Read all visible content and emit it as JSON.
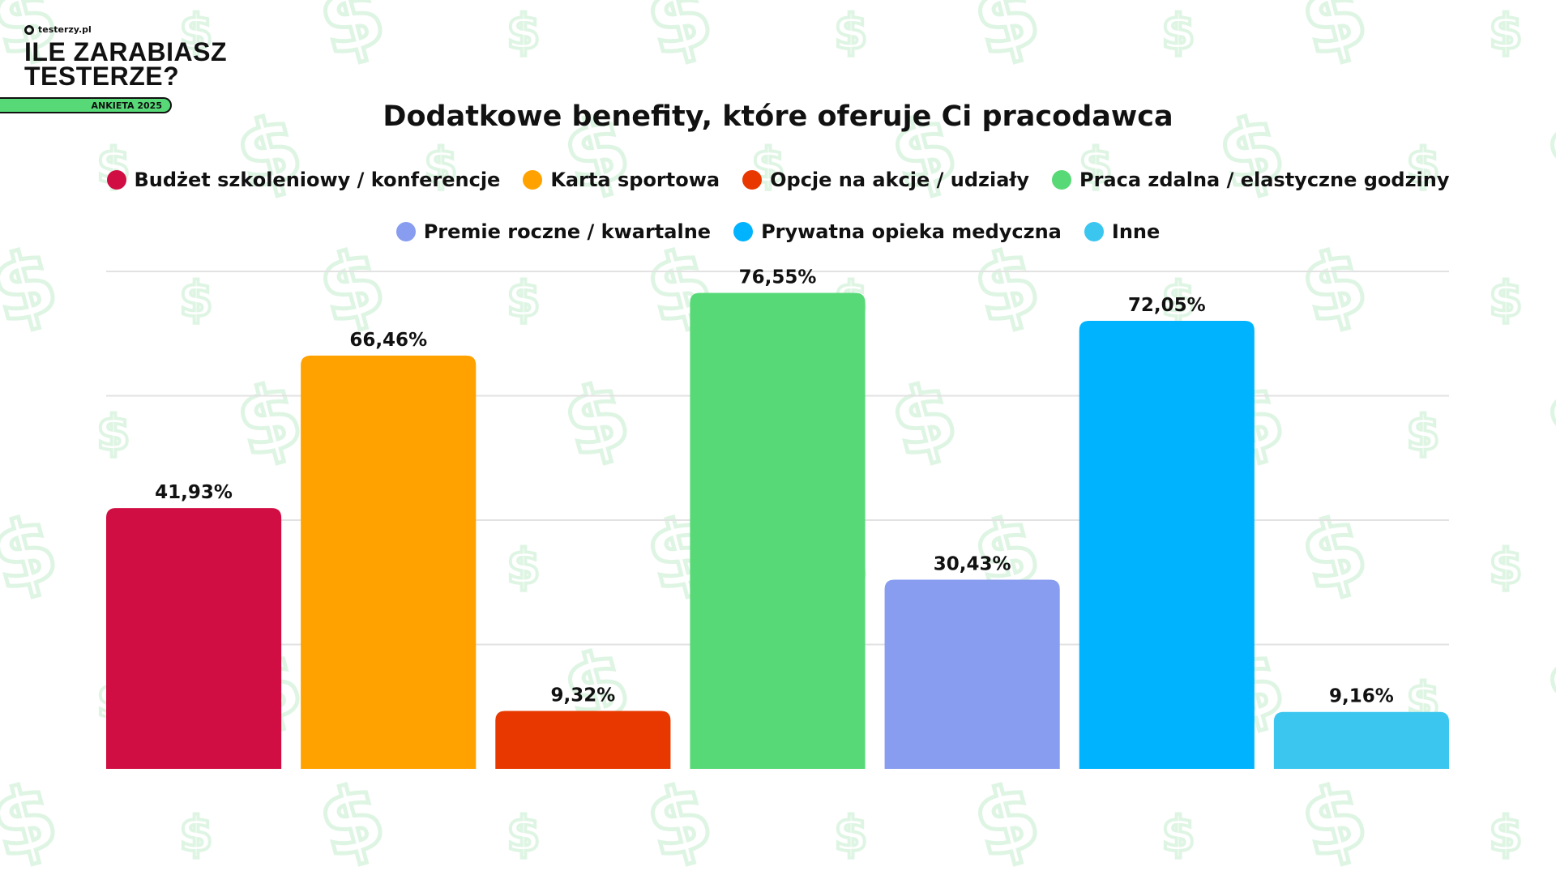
{
  "logo": {
    "brand": "testerzy.pl",
    "line1": "ILE ZARABIASZ",
    "line2": "TESTERZE?",
    "badge": "ANKIETA 2025"
  },
  "chart_data": {
    "type": "bar",
    "title": "Dodatkowe benefity, które oferuje Ci pracodawca",
    "categories": [
      "Budżet szkoleniowy / konferencje",
      "Karta sportowa",
      "Opcje na akcje / udziały",
      "Praca zdalna / elastyczne godziny",
      "Premie roczne / kwartalne",
      "Prywatna opieka medyczna",
      "Inne"
    ],
    "values": [
      41.93,
      66.46,
      9.32,
      76.55,
      30.43,
      72.05,
      9.16
    ],
    "labels": [
      "41,93%",
      "66,46%",
      "9,32%",
      "76,55%",
      "30,43%",
      "72,05%",
      "9,16%"
    ],
    "colors": [
      "#d10e43",
      "#ffa200",
      "#e83800",
      "#57d977",
      "#889df0",
      "#00b3ff",
      "#3bc6f0"
    ],
    "ylim": [
      0,
      80
    ],
    "gridlines": [
      20,
      40,
      60,
      80
    ],
    "grid": true,
    "legend_position": "top",
    "xlabel": "",
    "ylabel": ""
  }
}
